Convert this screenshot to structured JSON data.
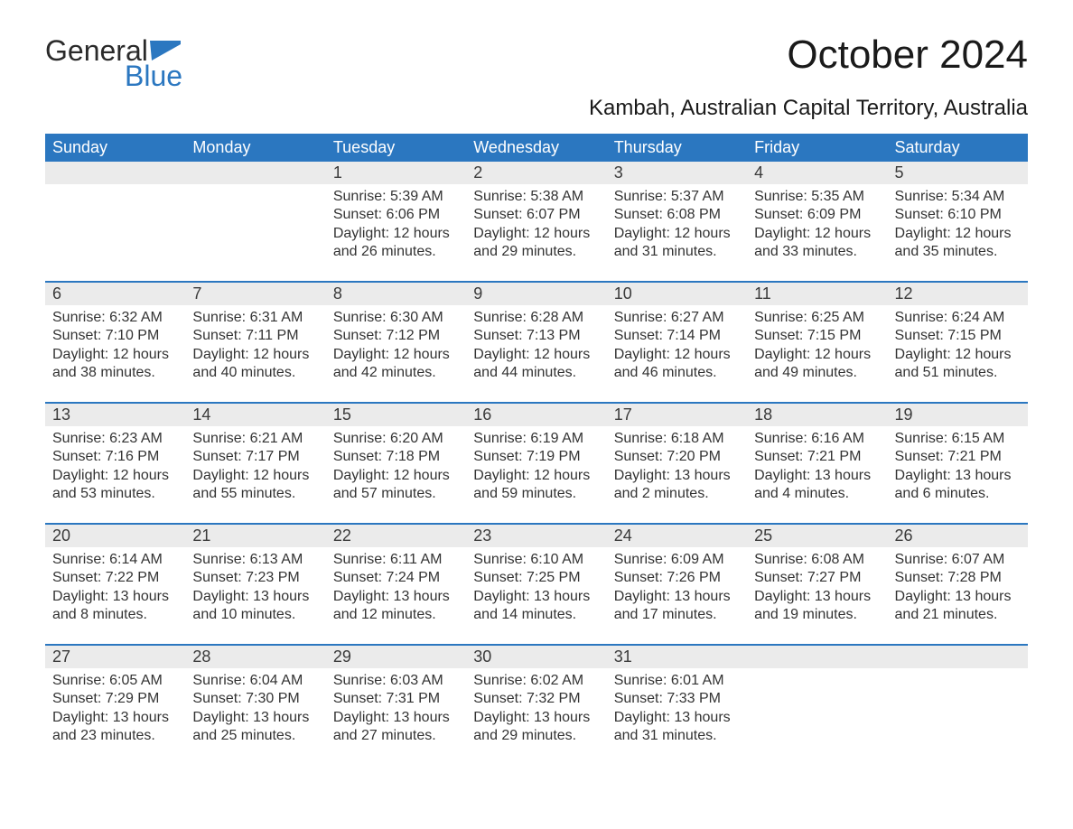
{
  "logo": {
    "word1": "General",
    "word2": "Blue"
  },
  "title": "October 2024",
  "subtitle": "Kambah, Australian Capital Territory, Australia",
  "colors": {
    "header_bg": "#2b77c0",
    "header_fg": "#ffffff",
    "daynum_bg": "#ebebeb",
    "rule": "#2b77c0",
    "logo_gray": "#2a2a2a",
    "logo_blue": "#2b77c0",
    "text": "#333333"
  },
  "layout": {
    "columns": 7,
    "weeks": 5,
    "leading_blanks": 2,
    "font_family": "Arial",
    "title_fontsize": 44,
    "subtitle_fontsize": 24,
    "th_fontsize": 18,
    "daynum_fontsize": 18,
    "body_fontsize": 16
  },
  "day_headers": [
    "Sunday",
    "Monday",
    "Tuesday",
    "Wednesday",
    "Thursday",
    "Friday",
    "Saturday"
  ],
  "labels": {
    "sunrise": "Sunrise: ",
    "sunset": "Sunset: ",
    "daylight": "Daylight: "
  },
  "days": [
    {
      "n": 1,
      "sunrise": "5:39 AM",
      "sunset": "6:06 PM",
      "daylight": "12 hours and 26 minutes."
    },
    {
      "n": 2,
      "sunrise": "5:38 AM",
      "sunset": "6:07 PM",
      "daylight": "12 hours and 29 minutes."
    },
    {
      "n": 3,
      "sunrise": "5:37 AM",
      "sunset": "6:08 PM",
      "daylight": "12 hours and 31 minutes."
    },
    {
      "n": 4,
      "sunrise": "5:35 AM",
      "sunset": "6:09 PM",
      "daylight": "12 hours and 33 minutes."
    },
    {
      "n": 5,
      "sunrise": "5:34 AM",
      "sunset": "6:10 PM",
      "daylight": "12 hours and 35 minutes."
    },
    {
      "n": 6,
      "sunrise": "6:32 AM",
      "sunset": "7:10 PM",
      "daylight": "12 hours and 38 minutes."
    },
    {
      "n": 7,
      "sunrise": "6:31 AM",
      "sunset": "7:11 PM",
      "daylight": "12 hours and 40 minutes."
    },
    {
      "n": 8,
      "sunrise": "6:30 AM",
      "sunset": "7:12 PM",
      "daylight": "12 hours and 42 minutes."
    },
    {
      "n": 9,
      "sunrise": "6:28 AM",
      "sunset": "7:13 PM",
      "daylight": "12 hours and 44 minutes."
    },
    {
      "n": 10,
      "sunrise": "6:27 AM",
      "sunset": "7:14 PM",
      "daylight": "12 hours and 46 minutes."
    },
    {
      "n": 11,
      "sunrise": "6:25 AM",
      "sunset": "7:15 PM",
      "daylight": "12 hours and 49 minutes."
    },
    {
      "n": 12,
      "sunrise": "6:24 AM",
      "sunset": "7:15 PM",
      "daylight": "12 hours and 51 minutes."
    },
    {
      "n": 13,
      "sunrise": "6:23 AM",
      "sunset": "7:16 PM",
      "daylight": "12 hours and 53 minutes."
    },
    {
      "n": 14,
      "sunrise": "6:21 AM",
      "sunset": "7:17 PM",
      "daylight": "12 hours and 55 minutes."
    },
    {
      "n": 15,
      "sunrise": "6:20 AM",
      "sunset": "7:18 PM",
      "daylight": "12 hours and 57 minutes."
    },
    {
      "n": 16,
      "sunrise": "6:19 AM",
      "sunset": "7:19 PM",
      "daylight": "12 hours and 59 minutes."
    },
    {
      "n": 17,
      "sunrise": "6:18 AM",
      "sunset": "7:20 PM",
      "daylight": "13 hours and 2 minutes."
    },
    {
      "n": 18,
      "sunrise": "6:16 AM",
      "sunset": "7:21 PM",
      "daylight": "13 hours and 4 minutes."
    },
    {
      "n": 19,
      "sunrise": "6:15 AM",
      "sunset": "7:21 PM",
      "daylight": "13 hours and 6 minutes."
    },
    {
      "n": 20,
      "sunrise": "6:14 AM",
      "sunset": "7:22 PM",
      "daylight": "13 hours and 8 minutes."
    },
    {
      "n": 21,
      "sunrise": "6:13 AM",
      "sunset": "7:23 PM",
      "daylight": "13 hours and 10 minutes."
    },
    {
      "n": 22,
      "sunrise": "6:11 AM",
      "sunset": "7:24 PM",
      "daylight": "13 hours and 12 minutes."
    },
    {
      "n": 23,
      "sunrise": "6:10 AM",
      "sunset": "7:25 PM",
      "daylight": "13 hours and 14 minutes."
    },
    {
      "n": 24,
      "sunrise": "6:09 AM",
      "sunset": "7:26 PM",
      "daylight": "13 hours and 17 minutes."
    },
    {
      "n": 25,
      "sunrise": "6:08 AM",
      "sunset": "7:27 PM",
      "daylight": "13 hours and 19 minutes."
    },
    {
      "n": 26,
      "sunrise": "6:07 AM",
      "sunset": "7:28 PM",
      "daylight": "13 hours and 21 minutes."
    },
    {
      "n": 27,
      "sunrise": "6:05 AM",
      "sunset": "7:29 PM",
      "daylight": "13 hours and 23 minutes."
    },
    {
      "n": 28,
      "sunrise": "6:04 AM",
      "sunset": "7:30 PM",
      "daylight": "13 hours and 25 minutes."
    },
    {
      "n": 29,
      "sunrise": "6:03 AM",
      "sunset": "7:31 PM",
      "daylight": "13 hours and 27 minutes."
    },
    {
      "n": 30,
      "sunrise": "6:02 AM",
      "sunset": "7:32 PM",
      "daylight": "13 hours and 29 minutes."
    },
    {
      "n": 31,
      "sunrise": "6:01 AM",
      "sunset": "7:33 PM",
      "daylight": "13 hours and 31 minutes."
    }
  ]
}
